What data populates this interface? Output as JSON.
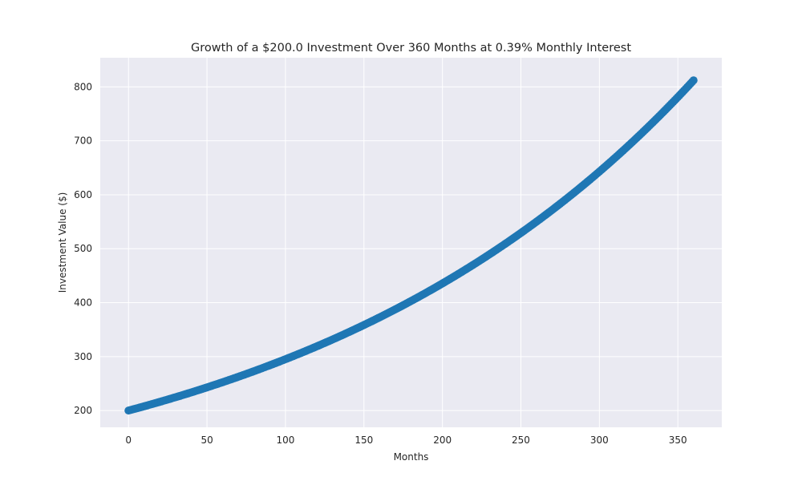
{
  "chart_data": {
    "type": "scatter",
    "title": "Growth of a $200.0 Investment Over 360 Months at 0.39% Monthly Interest",
    "xlabel": "Months",
    "ylabel": "Investment Value ($)",
    "x_ticks": [
      "0",
      "50",
      "100",
      "150",
      "200",
      "250",
      "300",
      "350"
    ],
    "y_ticks": [
      "200",
      "300",
      "400",
      "500",
      "600",
      "700",
      "800"
    ],
    "xlim": [
      -18,
      378
    ],
    "ylim": [
      169,
      854
    ],
    "grid": true,
    "series": [
      {
        "principal": 200.0,
        "monthly_rate": 0.0039,
        "months": 360,
        "x_start": 0,
        "x_end": 360,
        "y_start": 200.0,
        "y_end": 823.3,
        "color": "#1f77b4"
      }
    ]
  },
  "colors": {
    "plot_background": "#eaeaf2",
    "grid": "#ffffff",
    "marker": "#1f77b4"
  }
}
